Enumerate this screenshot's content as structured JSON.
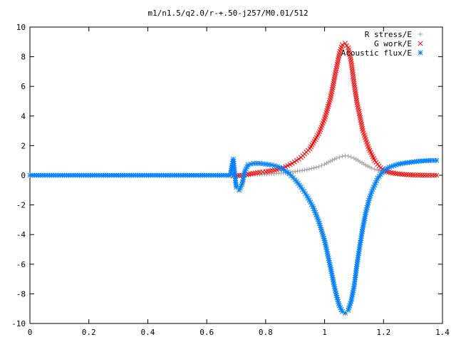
{
  "chart_data": {
    "type": "scatter",
    "title": "m1/n1.5/q2.0/r-+.50-j257/M0.01/512",
    "xlabel": "",
    "ylabel": "",
    "xlim": [
      0,
      1.4
    ],
    "ylim": [
      -10,
      10
    ],
    "grid": false,
    "legend": "top-right",
    "x_ticks": [
      "0",
      "0.2",
      "0.4",
      "0.6",
      "0.8",
      "1",
      "1.2",
      "1.4"
    ],
    "y_ticks": [
      "10",
      "8",
      "6",
      "4",
      "2",
      "0",
      "-2",
      "-4",
      "-6",
      "-8",
      "-10"
    ],
    "series": [
      {
        "name": "R stress/E",
        "marker": "plus",
        "color": "#a0a0a0",
        "x": [
          0.7,
          0.74,
          0.78,
          0.82,
          0.86,
          0.9,
          0.94,
          0.98,
          1.0,
          1.02,
          1.04,
          1.06,
          1.07,
          1.08,
          1.1,
          1.12,
          1.14,
          1.16,
          1.18,
          1.2,
          1.24,
          1.28,
          1.32,
          1.36,
          1.38
        ],
        "y": [
          0.0,
          0.03,
          0.05,
          0.1,
          0.16,
          0.25,
          0.38,
          0.58,
          0.75,
          0.95,
          1.15,
          1.28,
          1.32,
          1.3,
          1.15,
          0.92,
          0.68,
          0.48,
          0.33,
          0.22,
          0.1,
          0.04,
          0.02,
          0.01,
          0.0
        ]
      },
      {
        "name": "G work/E",
        "marker": "cross",
        "color": "#ff0000",
        "x": [
          0.69,
          0.72,
          0.75,
          0.78,
          0.8,
          0.83,
          0.86,
          0.89,
          0.92,
          0.95,
          0.98,
          1.0,
          1.02,
          1.04,
          1.05,
          1.06,
          1.07,
          1.08,
          1.09,
          1.1,
          1.11,
          1.13,
          1.15,
          1.17,
          1.19,
          1.21,
          1.24,
          1.27,
          1.3,
          1.34,
          1.38
        ],
        "y": [
          -0.05,
          0.0,
          0.1,
          0.2,
          0.25,
          0.35,
          0.5,
          0.8,
          1.2,
          1.8,
          2.8,
          3.8,
          5.2,
          7.2,
          8.2,
          8.8,
          8.9,
          8.6,
          7.7,
          6.2,
          4.9,
          3.0,
          1.8,
          1.0,
          0.5,
          0.25,
          0.12,
          0.05,
          0.02,
          0.0,
          0.0
        ]
      },
      {
        "name": "Acoustic flux/E",
        "marker": "star",
        "color": "#0080ff",
        "x": [
          0.0,
          0.6,
          0.68,
          0.69,
          0.7,
          0.71,
          0.72,
          0.73,
          0.74,
          0.76,
          0.78,
          0.8,
          0.82,
          0.84,
          0.86,
          0.88,
          0.9,
          0.92,
          0.94,
          0.96,
          0.98,
          1.0,
          1.02,
          1.03,
          1.04,
          1.05,
          1.06,
          1.07,
          1.08,
          1.09,
          1.1,
          1.11,
          1.12,
          1.13,
          1.14,
          1.15,
          1.16,
          1.18,
          1.2,
          1.22,
          1.25,
          1.28,
          1.32,
          1.36,
          1.38
        ],
        "y": [
          0.0,
          0.0,
          0.0,
          1.1,
          -0.8,
          -1.0,
          -0.6,
          0.3,
          0.7,
          0.8,
          0.8,
          0.75,
          0.7,
          0.6,
          0.4,
          0.1,
          -0.3,
          -0.8,
          -1.4,
          -2.1,
          -3.1,
          -4.4,
          -6.2,
          -7.2,
          -8.1,
          -8.8,
          -9.2,
          -9.3,
          -9.1,
          -8.5,
          -7.5,
          -6.0,
          -4.7,
          -3.5,
          -2.5,
          -1.7,
          -1.1,
          -0.2,
          0.3,
          0.55,
          0.75,
          0.85,
          0.95,
          1.0,
          1.0
        ]
      }
    ]
  }
}
